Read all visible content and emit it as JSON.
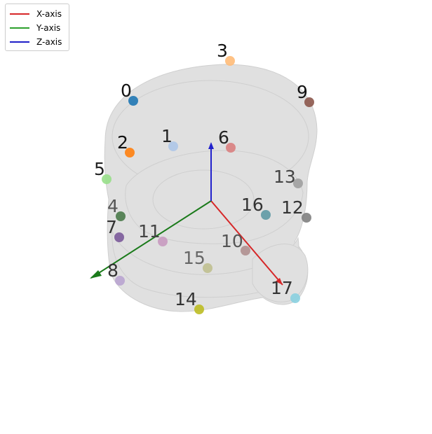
{
  "legend": {
    "entries": [
      {
        "label": "X-axis",
        "color": "#d62728"
      },
      {
        "label": "Y-axis",
        "color": "#2ca02c"
      },
      {
        "label": "Z-axis",
        "color": "#1f1fc8"
      }
    ]
  },
  "colors": {
    "mesh_fill": "#c8c8c8",
    "mesh_dark": "#a8a8a8",
    "x_axis": "#d62728",
    "y_axis": "#1a7a1a",
    "z_axis": "#2222cc"
  },
  "landmarks": [
    {
      "label": "0",
      "color": "#1f77b4"
    },
    {
      "label": "1",
      "color": "#aec7e8"
    },
    {
      "label": "2",
      "color": "#ff7f0e"
    },
    {
      "label": "3",
      "color": "#ffbb78"
    },
    {
      "label": "4",
      "color": "#4a7a4a"
    },
    {
      "label": "5",
      "color": "#98df8a"
    },
    {
      "label": "6",
      "color": "#d98080"
    },
    {
      "label": "7",
      "color": "#7b5a9a"
    },
    {
      "label": "8",
      "color": "#b9a4d0"
    },
    {
      "label": "9",
      "color": "#8c564b"
    },
    {
      "label": "10",
      "color": "#b09090"
    },
    {
      "label": "11",
      "color": "#c89ac0"
    },
    {
      "label": "12",
      "color": "#7f7f7f"
    },
    {
      "label": "13",
      "color": "#a0a0a0"
    },
    {
      "label": "14",
      "color": "#bcbd22"
    },
    {
      "label": "15",
      "color": "#c0c090"
    },
    {
      "label": "16",
      "color": "#5f9aa5"
    },
    {
      "label": "17",
      "color": "#8ad0e0"
    }
  ]
}
